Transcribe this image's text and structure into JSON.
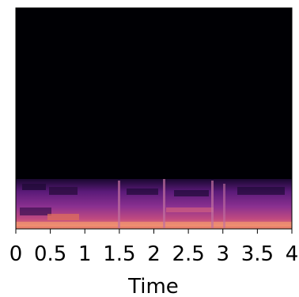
{
  "chart_data": {
    "type": "spectrogram",
    "xlabel": "Time",
    "xlim": [
      0,
      4
    ],
    "xticks": [
      0,
      0.5,
      1,
      1.5,
      2,
      2.5,
      3,
      3.5,
      4
    ]
  }
}
